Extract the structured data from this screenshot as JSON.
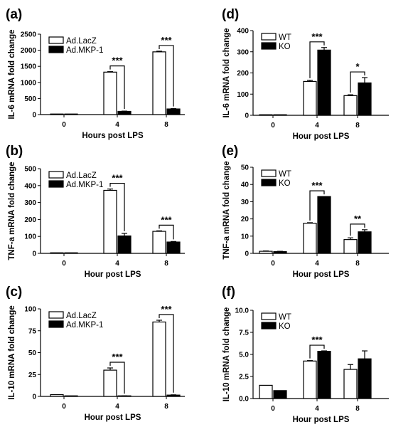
{
  "chart_data": [
    {
      "id": "a",
      "panel_label": "(a)",
      "type": "bar",
      "categories": [
        "0",
        "4",
        "8"
      ],
      "series": [
        {
          "name": "Ad.LacZ",
          "fill": "white",
          "values": [
            5,
            1320,
            1950
          ],
          "errors": [
            0,
            15,
            20
          ]
        },
        {
          "name": "Ad.MKP-1",
          "fill": "black",
          "values": [
            3,
            100,
            175
          ],
          "errors": [
            0,
            8,
            10
          ]
        }
      ],
      "ylim": [
        0,
        2500
      ],
      "yticks": [
        "0",
        "500",
        "1000",
        "1500",
        "2000",
        "2500"
      ],
      "xlabel": "Hours post LPS",
      "ylabel": "IL-6 mRNA fold change",
      "legend": "top-left",
      "significance": [
        {
          "category": 1,
          "label": "***"
        },
        {
          "category": 2,
          "label": "***"
        }
      ]
    },
    {
      "id": "b",
      "panel_label": "(b)",
      "type": "bar",
      "categories": [
        "0",
        "4",
        "8"
      ],
      "series": [
        {
          "name": "Ad.LacZ",
          "fill": "white",
          "values": [
            2,
            372,
            130
          ],
          "errors": [
            0,
            8,
            3
          ]
        },
        {
          "name": "Ad.MKP-1",
          "fill": "black",
          "values": [
            1,
            103,
            67
          ],
          "errors": [
            0,
            15,
            3
          ]
        }
      ],
      "ylim": [
        0,
        500
      ],
      "yticks": [
        "0",
        "100",
        "200",
        "300",
        "400",
        "500"
      ],
      "xlabel": "Hour post LPS",
      "ylabel": "TNF-a mRNA fold change",
      "legend": "top-left",
      "significance": [
        {
          "category": 1,
          "label": "***"
        },
        {
          "category": 2,
          "label": "***"
        }
      ]
    },
    {
      "id": "c",
      "panel_label": "(c)",
      "type": "bar",
      "categories": [
        "0",
        "4",
        "8"
      ],
      "series": [
        {
          "name": "Ad.LacZ",
          "fill": "white",
          "values": [
            2,
            30,
            85
          ],
          "errors": [
            0,
            2.5,
            2
          ]
        },
        {
          "name": "Ad.MKP-1",
          "fill": "black",
          "values": [
            0.5,
            0.5,
            1.5
          ],
          "errors": [
            0,
            0.2,
            0.3
          ]
        }
      ],
      "ylim": [
        0,
        100
      ],
      "yticks": [
        "0",
        "25",
        "50",
        "75",
        "100"
      ],
      "xlabel": "Hour post LPS",
      "ylabel": "IL-10 mRNA fold change",
      "legend": "top-left",
      "significance": [
        {
          "category": 1,
          "label": "***"
        },
        {
          "category": 2,
          "label": "***"
        }
      ]
    },
    {
      "id": "d",
      "panel_label": "(d)",
      "type": "bar",
      "categories": [
        "0",
        "4",
        "8"
      ],
      "series": [
        {
          "name": "WT",
          "fill": "white",
          "values": [
            2,
            160,
            93
          ],
          "errors": [
            0,
            5,
            4
          ]
        },
        {
          "name": "KO",
          "fill": "black",
          "values": [
            2,
            308,
            153
          ],
          "errors": [
            0,
            12,
            25
          ]
        }
      ],
      "ylim": [
        0,
        400
      ],
      "yticks": [
        "0",
        "100",
        "200",
        "300",
        "400"
      ],
      "xlabel": "Hour post LPS",
      "ylabel": "IL-6 mRNA fold change",
      "legend": "top-left",
      "significance": [
        {
          "category": 1,
          "label": "***"
        },
        {
          "category": 2,
          "label": "*"
        }
      ]
    },
    {
      "id": "e",
      "panel_label": "(e)",
      "type": "bar",
      "categories": [
        "0",
        "4",
        "8"
      ],
      "series": [
        {
          "name": "WT",
          "fill": "white",
          "values": [
            1.2,
            17.5,
            8
          ],
          "errors": [
            0.2,
            0.3,
            1
          ]
        },
        {
          "name": "KO",
          "fill": "black",
          "values": [
            1,
            33,
            12.5
          ],
          "errors": [
            0.2,
            0,
            1.2
          ]
        }
      ],
      "ylim": [
        0,
        50
      ],
      "yticks": [
        "0",
        "10",
        "20",
        "30",
        "40",
        "50"
      ],
      "xlabel": "Hour post LPS",
      "ylabel": "TNF-a mRNA fold change",
      "legend": "top-left",
      "significance": [
        {
          "category": 1,
          "label": "***"
        },
        {
          "category": 2,
          "label": "**"
        }
      ]
    },
    {
      "id": "f",
      "panel_label": "(f)",
      "type": "bar",
      "categories": [
        "0",
        "4",
        "8"
      ],
      "series": [
        {
          "name": "WT",
          "fill": "white",
          "values": [
            1.5,
            4.25,
            3.3
          ],
          "errors": [
            0,
            0.05,
            0.55
          ]
        },
        {
          "name": "KO",
          "fill": "black",
          "values": [
            0.9,
            5.35,
            4.5
          ],
          "errors": [
            0,
            0.05,
            0.9
          ]
        }
      ],
      "ylim": [
        0,
        10
      ],
      "yticks": [
        "0.0",
        "2.5",
        "5.0",
        "7.5",
        "10.0"
      ],
      "xlabel": "Hour post LPS",
      "ylabel": "IL-10 mRNA fold change",
      "legend": "top-left",
      "significance": [
        {
          "category": 1,
          "label": "***"
        }
      ]
    }
  ]
}
